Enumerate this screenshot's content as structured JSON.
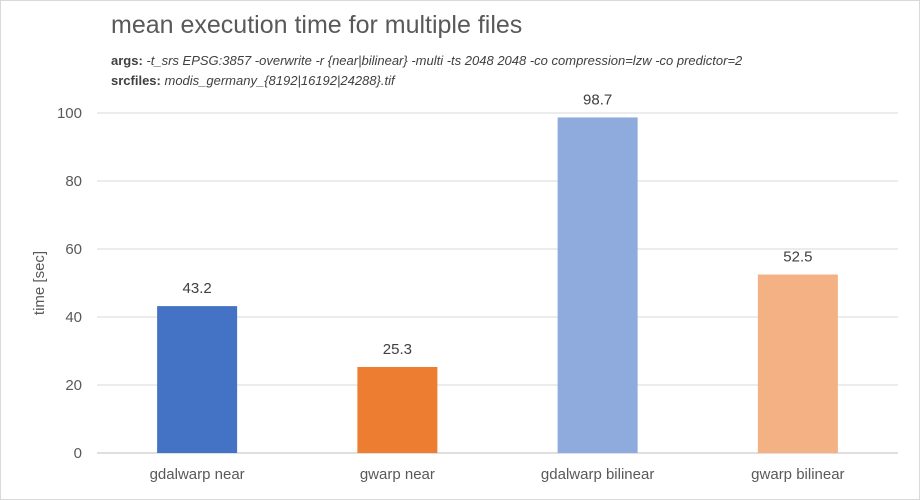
{
  "header": {
    "title": "mean execution time for multiple files",
    "args_key": "args:",
    "args_value": " -t_srs EPSG:3857 -overwrite -r {near|bilinear} -multi -ts 2048 2048 -co compression=lzw -co predictor=2",
    "srcfiles_key": "srcfiles:",
    "srcfiles_value": " modis_germany_{8192|16192|24288}.tif"
  },
  "chart_data": {
    "type": "bar",
    "title": "mean execution time for multiple files",
    "xlabel": "",
    "ylabel": "time [sec]",
    "categories": [
      "gdalwarp near",
      "gwarp near",
      "gdalwarp bilinear",
      "gwarp bilinear"
    ],
    "values": [
      43.2,
      25.3,
      98.7,
      52.5
    ],
    "data_labels": [
      "43.2",
      "25.3",
      "98.7",
      "52.5"
    ],
    "colors": [
      "#4472c4",
      "#ed7d31",
      "#8faadc",
      "#f4b183"
    ],
    "ylim": [
      0,
      100
    ],
    "yticks": [
      0,
      20,
      40,
      60,
      80,
      100
    ],
    "grid": true,
    "legend": "none"
  }
}
